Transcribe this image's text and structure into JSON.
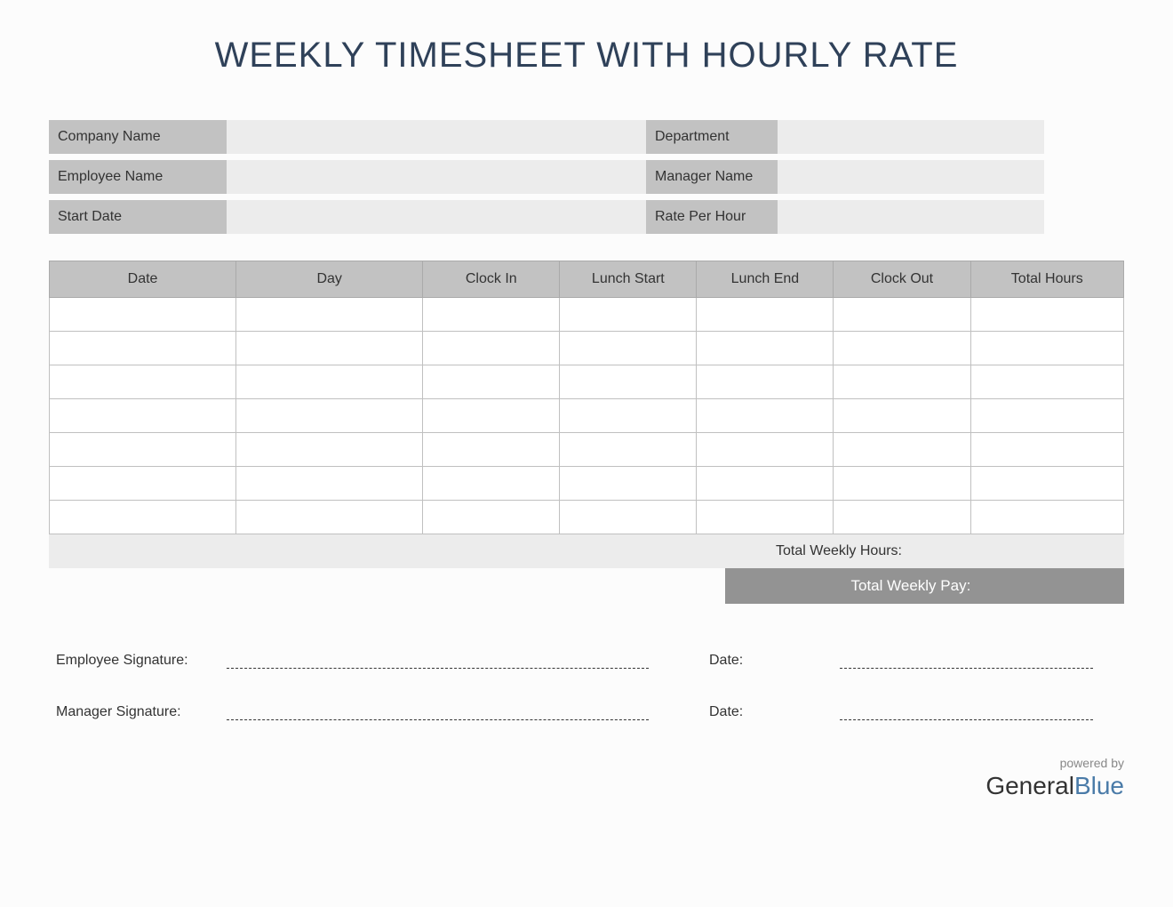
{
  "title": "WEEKLY TIMESHEET WITH HOURLY RATE",
  "info": {
    "fields": [
      {
        "leftLabel": "Company Name",
        "leftValue": "",
        "rightLabel": "Department",
        "rightValue": ""
      },
      {
        "leftLabel": "Employee Name",
        "leftValue": "",
        "rightLabel": "Manager Name",
        "rightValue": ""
      },
      {
        "leftLabel": "Start Date",
        "leftValue": "",
        "rightLabel": "Rate Per Hour",
        "rightValue": ""
      }
    ]
  },
  "table": {
    "columns": [
      "Date",
      "Day",
      "Clock In",
      "Lunch Start",
      "Lunch End",
      "Clock Out",
      "Total Hours"
    ],
    "columnWidths": [
      "195px",
      "195px",
      "143px",
      "143px",
      "143px",
      "143px",
      "160px"
    ],
    "rows": [
      [
        "",
        "",
        "",
        "",
        "",
        "",
        ""
      ],
      [
        "",
        "",
        "",
        "",
        "",
        "",
        ""
      ],
      [
        "",
        "",
        "",
        "",
        "",
        "",
        ""
      ],
      [
        "",
        "",
        "",
        "",
        "",
        "",
        ""
      ],
      [
        "",
        "",
        "",
        "",
        "",
        "",
        ""
      ],
      [
        "",
        "",
        "",
        "",
        "",
        "",
        ""
      ],
      [
        "",
        "",
        "",
        "",
        "",
        "",
        ""
      ]
    ],
    "headerBackground": "#c2c2c2",
    "borderColor": "#c0c0c0",
    "cellBackground": "#ffffff"
  },
  "totals": {
    "weeklyHoursLabel": "Total Weekly Hours:",
    "weeklyHoursValue": "",
    "weeklyPayLabel": "Total Weekly Pay:",
    "weeklyPayValue": ""
  },
  "signatures": {
    "employeeLabel": "Employee Signature:",
    "managerLabel": "Manager Signature:",
    "dateLabel": "Date:"
  },
  "footer": {
    "poweredBy": "powered by",
    "brandGeneral": "General",
    "brandBlue": "Blue"
  },
  "colors": {
    "titleColor": "#2f4159",
    "labelBackground": "#c2c2c2",
    "valueBackground": "#ececec",
    "payBoxBackground": "#939393",
    "payBoxText": "#ffffff",
    "pageBackground": "#fcfcfc"
  }
}
